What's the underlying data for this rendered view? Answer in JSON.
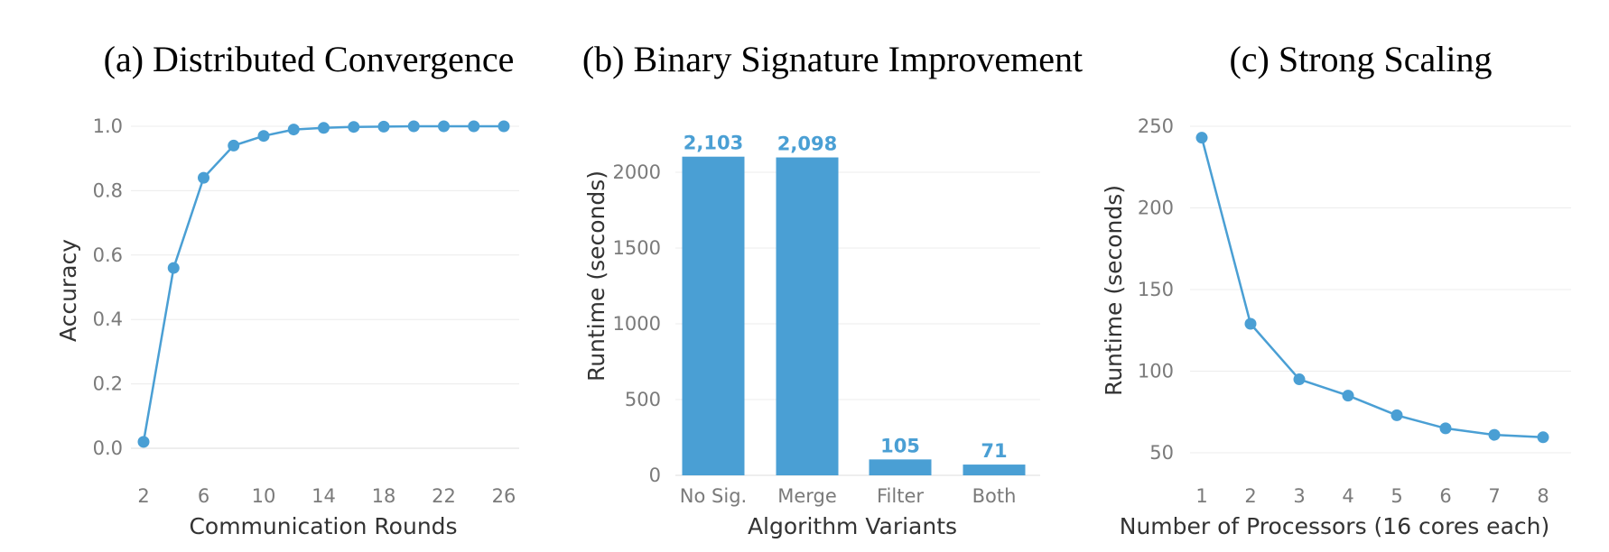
{
  "chart_data": [
    {
      "type": "line",
      "title": "(a) Distributed Convergence",
      "xlabel": "Communication Rounds",
      "ylabel": "Accuracy",
      "x": [
        2,
        4,
        6,
        8,
        10,
        12,
        14,
        16,
        18,
        20,
        22,
        24,
        26
      ],
      "series": [
        {
          "values": [
            0.02,
            0.56,
            0.84,
            0.94,
            0.97,
            0.99,
            0.995,
            0.998,
            0.999,
            1.0,
            1.0,
            1.0,
            1.0
          ]
        }
      ],
      "xticks": [
        2,
        6,
        10,
        14,
        18,
        22,
        26
      ],
      "yticks": [
        0.0,
        0.2,
        0.4,
        0.6,
        0.8,
        1.0
      ],
      "ytick_labels": [
        "0.0",
        "0.2",
        "0.4",
        "0.6",
        "0.8",
        "1.0"
      ],
      "xlim": [
        2,
        26
      ],
      "ylim": [
        0,
        1
      ],
      "grid": true,
      "color": "#4a9fd4"
    },
    {
      "type": "bar",
      "title": "(b) Binary Signature Improvement",
      "xlabel": "Algorithm Variants",
      "ylabel": "Runtime (seconds)",
      "categories": [
        "No Sig.",
        "Merge",
        "Filter",
        "Both"
      ],
      "values": [
        2103,
        2098,
        105,
        71
      ],
      "value_labels": [
        "2,103",
        "2,098",
        "105",
        "71"
      ],
      "yticks": [
        0,
        500,
        1000,
        1500,
        2000
      ],
      "ylim": [
        0,
        2100
      ],
      "grid": true,
      "color": "#4a9fd4"
    },
    {
      "type": "line",
      "title": "(c) Strong Scaling",
      "xlabel": "Number of Processors (16 cores each)",
      "ylabel": "Runtime (seconds)",
      "x": [
        1,
        2,
        3,
        4,
        5,
        6,
        7,
        8
      ],
      "series": [
        {
          "values": [
            243,
            129,
            95,
            85,
            73,
            65,
            61,
            59.5
          ]
        }
      ],
      "xticks": [
        1,
        2,
        3,
        4,
        5,
        6,
        7,
        8
      ],
      "yticks": [
        50,
        100,
        150,
        200,
        250
      ],
      "xlim": [
        1,
        8
      ],
      "ylim": [
        50,
        250
      ],
      "grid": true,
      "color": "#4a9fd4"
    }
  ]
}
